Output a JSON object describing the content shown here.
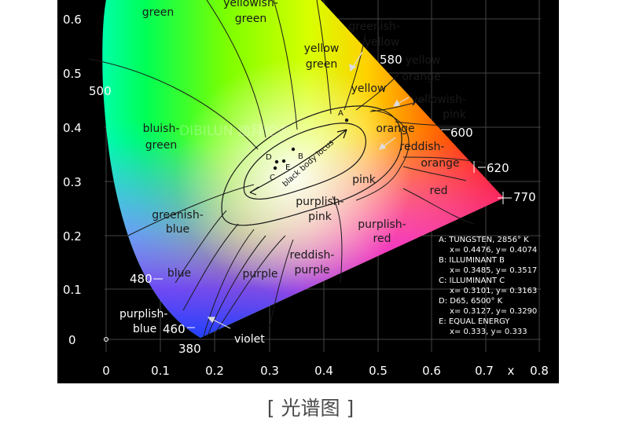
{
  "caption": "[ 光谱图 ]",
  "watermark": "DIBILUN 迪拜伦®",
  "x_axis": {
    "label": "x",
    "ticks": [
      "0",
      "0.1",
      "0.2",
      "0.3",
      "0.4",
      "0.5",
      "0.6",
      "0.7",
      "0.8"
    ]
  },
  "y_axis": {
    "ticks": [
      "0.6",
      "0.5",
      "0.4",
      "0.3",
      "0.2",
      "0.1",
      "0"
    ]
  },
  "wavelengths": [
    "500",
    "580",
    "600",
    "620",
    "770",
    "480",
    "460",
    "380"
  ],
  "regions": {
    "green": "green",
    "yellowish_green_1": "yellowish-",
    "yellowish_green_2": "green",
    "greenish_yellow_1": "greenish-",
    "greenish_yellow_2": "yellow",
    "yellow_green_1": "yellow",
    "yellow_green_2": "green",
    "yellow": "yellow",
    "yellow_orange_1": "yellow",
    "yellow_orange_2": "orange",
    "yellowish_pink_1": "yellowish-",
    "yellowish_pink_2": "pink",
    "orange": "orange",
    "reddish_orange_1": "reddish-",
    "reddish_orange_2": "orange",
    "red": "red",
    "pink": "pink",
    "bluish_green_1": "bluish-",
    "bluish_green_2": "green",
    "greenish_blue_1": "greenish-",
    "greenish_blue_2": "blue",
    "purplish_pink_1": "purplish-",
    "purplish_pink_2": "pink",
    "purplish_red_1": "purplish-",
    "purplish_red_2": "red",
    "blue": "blue",
    "purple": "purple",
    "reddish_purple_1": "reddish-",
    "reddish_purple_2": "purple",
    "purplish_blue_1": "purplish-",
    "purplish_blue_2": "blue",
    "violet": "violet",
    "black_body_locus": "black body locus"
  },
  "points": [
    "A",
    "B",
    "C",
    "D",
    "E"
  ],
  "legend": [
    {
      "line1": "A:  TUNGSTEN, 2856° K",
      "line2": "x= 0.4476, y= 0.4074"
    },
    {
      "line1": "B:  ILLUMINANT B",
      "line2": "x= 0.3485, y= 0.3517"
    },
    {
      "line1": "C:  ILLUMINANT C",
      "line2": "x= 0.3101, y= 0.3163"
    },
    {
      "line1": "D:  D65, 6500° K",
      "line2": "x= 0.3127, y= 0.3290"
    },
    {
      "line1": "E:  EQUAL ENERGY",
      "line2": "x= 0.333, y= 0.333"
    }
  ],
  "colors": {
    "background": "#000000",
    "caption": "#4a4a4a",
    "text": "#1a1a1a",
    "axis_text": "#ffffff"
  }
}
